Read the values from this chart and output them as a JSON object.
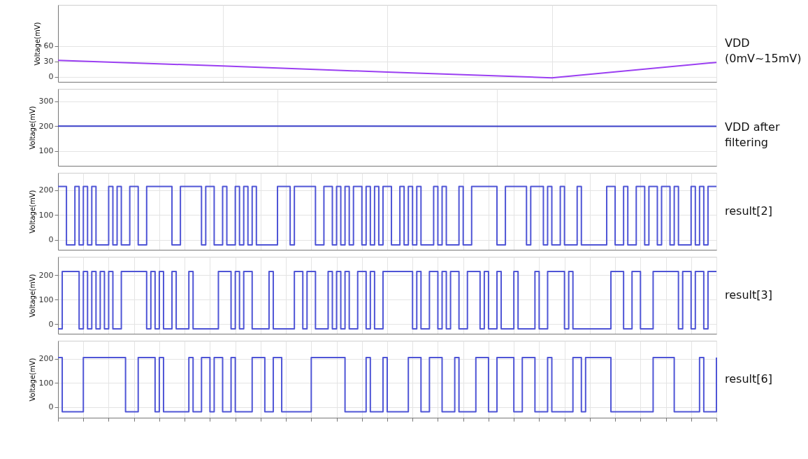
{
  "chart_data": [
    {
      "type": "line",
      "ylabel": "Voltage(mV)",
      "categories": [
        null,
        null,
        null,
        null,
        null
      ],
      "series": [
        {
          "name": "VDD (0mV~15mV)",
          "color": "#9b3ff2",
          "values": [
            32,
            21,
            9,
            -2,
            28
          ]
        }
      ],
      "ylim": [
        -10,
        140
      ],
      "yticks": [
        0,
        30,
        60
      ],
      "grid": true,
      "tick_labels": "y",
      "legend": false
    },
    {
      "type": "line",
      "ylabel": "Voltage(mV)",
      "categories": [
        null,
        null,
        null,
        null
      ],
      "series": [
        {
          "name": "VDD after filtering",
          "color": "#3a3fc8",
          "values": [
            200,
            200,
            199,
            199
          ]
        }
      ],
      "ylim": [
        40,
        350
      ],
      "yticks": [
        100,
        200,
        300
      ],
      "grid": true,
      "tick_labels": "y",
      "legend": false
    },
    {
      "type": "step",
      "ylabel": "Voltage(mV)",
      "categories": [
        null,
        null,
        null,
        null,
        null,
        null,
        null,
        null,
        null,
        null,
        null,
        null,
        null,
        null,
        null,
        null,
        null,
        null,
        null,
        null,
        null,
        null,
        null,
        null,
        null,
        null,
        null,
        null,
        null,
        null,
        null,
        null,
        null,
        null,
        null,
        null,
        null,
        null,
        null,
        null,
        null,
        null,
        null,
        null,
        null,
        null,
        null,
        null,
        null,
        null,
        null,
        null,
        null,
        null,
        null,
        null,
        null,
        null,
        null,
        null,
        null,
        null,
        null,
        null,
        null,
        null,
        null,
        null,
        null,
        null,
        null,
        null,
        null,
        null,
        null,
        null,
        null,
        null,
        null,
        null,
        null,
        null,
        null,
        null,
        null,
        null,
        null,
        null,
        null,
        null,
        null,
        null,
        null,
        null,
        null,
        null,
        null,
        null,
        null,
        null,
        null,
        null,
        null,
        null,
        null,
        null,
        null,
        null,
        null,
        null,
        null,
        null,
        null,
        null,
        null,
        null,
        null,
        null,
        null,
        null,
        null,
        null,
        null,
        null,
        null,
        null,
        null,
        null,
        null,
        null,
        null,
        null,
        null,
        null,
        null,
        null,
        null,
        null,
        null,
        null,
        null,
        null,
        null,
        null,
        null,
        null,
        null,
        null,
        null,
        null,
        null,
        null,
        null,
        null,
        null,
        null,
        null
      ],
      "series": [
        {
          "name": "result[2]",
          "color": "#4f55d6",
          "values": [
            215,
            215,
            -20,
            -20,
            215,
            -20,
            215,
            -20,
            215,
            -20,
            -20,
            -20,
            215,
            -20,
            215,
            -20,
            -20,
            215,
            215,
            -20,
            -20,
            215,
            215,
            215,
            215,
            215,
            215,
            -20,
            -20,
            215,
            215,
            215,
            215,
            215,
            -20,
            215,
            215,
            -20,
            -20,
            215,
            -20,
            -20,
            215,
            -20,
            215,
            -20,
            215,
            -20,
            -20,
            -20,
            -20,
            -20,
            215,
            215,
            215,
            -20,
            215,
            215,
            215,
            215,
            215,
            -20,
            -20,
            215,
            215,
            -20,
            215,
            -20,
            215,
            -20,
            215,
            215,
            -20,
            215,
            -20,
            215,
            -20,
            215,
            215,
            -20,
            -20,
            215,
            -20,
            215,
            -20,
            215,
            -20,
            -20,
            -20,
            215,
            -20,
            215,
            -20,
            -20,
            -20,
            215,
            -20,
            -20,
            215,
            215,
            215,
            215,
            215,
            215,
            -20,
            -20,
            215,
            215,
            215,
            215,
            215,
            -20,
            215,
            215,
            215,
            -20,
            215,
            -20,
            -20,
            215,
            -20,
            -20,
            -20,
            215,
            -20,
            -20,
            -20,
            -20,
            -20,
            -20,
            215,
            215,
            -20,
            -20,
            215,
            -20,
            -20,
            215,
            215,
            -20,
            215,
            215,
            -20,
            215,
            215,
            -20,
            215,
            -20,
            -20,
            -20,
            215,
            -20,
            215,
            -20,
            215,
            215,
            215
          ]
        }
      ],
      "ylim": [
        -40,
        270
      ],
      "yticks": [
        0,
        100,
        200
      ],
      "grid": true,
      "tick_labels": "y",
      "legend": false
    },
    {
      "type": "step",
      "ylabel": "Voltage(mV)",
      "categories": [
        null,
        null,
        null,
        null,
        null,
        null,
        null,
        null,
        null,
        null,
        null,
        null,
        null,
        null,
        null,
        null,
        null,
        null,
        null,
        null,
        null,
        null,
        null,
        null,
        null,
        null,
        null,
        null,
        null,
        null,
        null,
        null,
        null,
        null,
        null,
        null,
        null,
        null,
        null,
        null,
        null,
        null,
        null,
        null,
        null,
        null,
        null,
        null,
        null,
        null,
        null,
        null,
        null,
        null,
        null,
        null,
        null,
        null,
        null,
        null,
        null,
        null,
        null,
        null,
        null,
        null,
        null,
        null,
        null,
        null,
        null,
        null,
        null,
        null,
        null,
        null,
        null,
        null,
        null,
        null,
        null,
        null,
        null,
        null,
        null,
        null,
        null,
        null,
        null,
        null,
        null,
        null,
        null,
        null,
        null,
        null,
        null,
        null,
        null,
        null,
        null,
        null,
        null,
        null,
        null,
        null,
        null,
        null,
        null,
        null,
        null,
        null,
        null,
        null,
        null,
        null,
        null,
        null,
        null,
        null,
        null,
        null,
        null,
        null,
        null,
        null,
        null,
        null,
        null,
        null,
        null,
        null,
        null,
        null,
        null,
        null,
        null,
        null,
        null,
        null,
        null,
        null,
        null,
        null,
        null,
        null,
        null,
        null,
        null,
        null,
        null,
        null,
        null,
        null,
        null,
        null,
        null
      ],
      "series": [
        {
          "name": "result[3]",
          "color": "#4f55d6",
          "values": [
            -20,
            215,
            215,
            215,
            215,
            -20,
            215,
            -20,
            215,
            -20,
            215,
            -20,
            215,
            -20,
            -20,
            215,
            215,
            215,
            215,
            215,
            215,
            -20,
            215,
            -20,
            215,
            -20,
            -20,
            215,
            -20,
            -20,
            -20,
            215,
            -20,
            -20,
            -20,
            -20,
            -20,
            -20,
            215,
            215,
            215,
            -20,
            215,
            -20,
            215,
            215,
            -20,
            -20,
            -20,
            -20,
            215,
            -20,
            -20,
            -20,
            -20,
            -20,
            215,
            215,
            -20,
            215,
            215,
            -20,
            -20,
            -20,
            215,
            -20,
            215,
            -20,
            215,
            -20,
            -20,
            215,
            215,
            -20,
            215,
            -20,
            -20,
            215,
            215,
            215,
            215,
            215,
            215,
            215,
            -20,
            215,
            -20,
            -20,
            215,
            215,
            -20,
            215,
            -20,
            215,
            215,
            -20,
            -20,
            215,
            215,
            215,
            -20,
            215,
            -20,
            -20,
            215,
            -20,
            -20,
            -20,
            215,
            -20,
            -20,
            -20,
            -20,
            215,
            -20,
            -20,
            215,
            215,
            215,
            215,
            -20,
            215,
            -20,
            -20,
            -20,
            -20,
            -20,
            -20,
            -20,
            -20,
            -20,
            215,
            215,
            215,
            -20,
            -20,
            215,
            215,
            -20,
            -20,
            -20,
            215,
            215,
            215,
            215,
            215,
            215,
            -20,
            215,
            215,
            -20,
            215,
            215,
            -20,
            215,
            215,
            215
          ]
        }
      ],
      "ylim": [
        -40,
        275
      ],
      "yticks": [
        0,
        100,
        200
      ],
      "grid": true,
      "tick_labels": "y",
      "legend": false
    },
    {
      "type": "step",
      "ylabel": "Voltage(mV)",
      "categories": [
        null,
        null,
        null,
        null,
        null,
        null,
        null,
        null,
        null,
        null,
        null,
        null,
        null,
        null,
        null,
        null,
        null,
        null,
        null,
        null,
        null,
        null,
        null,
        null,
        null,
        null,
        null,
        null,
        null,
        null,
        null,
        null,
        null,
        null,
        null,
        null,
        null,
        null,
        null,
        null,
        null,
        null,
        null,
        null,
        null,
        null,
        null,
        null,
        null,
        null,
        null,
        null,
        null,
        null,
        null,
        null,
        null,
        null,
        null,
        null,
        null,
        null,
        null,
        null,
        null,
        null,
        null,
        null,
        null,
        null,
        null,
        null,
        null,
        null,
        null,
        null,
        null,
        null,
        null,
        null,
        null,
        null,
        null,
        null,
        null,
        null,
        null,
        null,
        null,
        null,
        null,
        null,
        null,
        null,
        null,
        null,
        null,
        null,
        null,
        null,
        null,
        null,
        null,
        null,
        null,
        null,
        null,
        null,
        null,
        null,
        null,
        null,
        null,
        null,
        null,
        null,
        null,
        null,
        null,
        null,
        null,
        null,
        null,
        null,
        null,
        null,
        null,
        null,
        null,
        null,
        null,
        null,
        null,
        null,
        null,
        null,
        null,
        null,
        null,
        null,
        null,
        null,
        null,
        null,
        null,
        null,
        null,
        null,
        null,
        null,
        null,
        null,
        null,
        null,
        null,
        null,
        null
      ],
      "series": [
        {
          "name": "result[6]",
          "color": "#4f55d6",
          "values": [
            205,
            -20,
            -20,
            -20,
            -20,
            -20,
            205,
            205,
            205,
            205,
            205,
            205,
            205,
            205,
            205,
            205,
            -20,
            -20,
            -20,
            205,
            205,
            205,
            205,
            -20,
            205,
            -20,
            -20,
            -20,
            -20,
            -20,
            -20,
            205,
            -20,
            -20,
            205,
            205,
            -20,
            205,
            205,
            -20,
            -20,
            205,
            -20,
            -20,
            -20,
            -20,
            205,
            205,
            205,
            -20,
            -20,
            205,
            205,
            -20,
            -20,
            -20,
            -20,
            -20,
            -20,
            -20,
            205,
            205,
            205,
            205,
            205,
            205,
            205,
            205,
            -20,
            -20,
            -20,
            -20,
            -20,
            205,
            -20,
            -20,
            -20,
            205,
            -20,
            -20,
            -20,
            -20,
            -20,
            205,
            205,
            205,
            -20,
            -20,
            205,
            205,
            205,
            -20,
            -20,
            -20,
            205,
            -20,
            -20,
            -20,
            -20,
            205,
            205,
            205,
            -20,
            -20,
            205,
            205,
            205,
            205,
            -20,
            -20,
            205,
            205,
            205,
            -20,
            -20,
            -20,
            205,
            -20,
            -20,
            -20,
            -20,
            -20,
            205,
            205,
            -20,
            205,
            205,
            205,
            205,
            205,
            205,
            -20,
            -20,
            -20,
            -20,
            -20,
            -20,
            -20,
            -20,
            -20,
            -20,
            205,
            205,
            205,
            205,
            205,
            -20,
            -20,
            -20,
            -20,
            -20,
            -20,
            205,
            -20,
            -20,
            -20,
            205
          ]
        }
      ],
      "ylim": [
        -45,
        275
      ],
      "yticks": [
        0,
        100,
        200
      ],
      "grid": true,
      "tick_labels": "y",
      "legend": false
    }
  ]
}
